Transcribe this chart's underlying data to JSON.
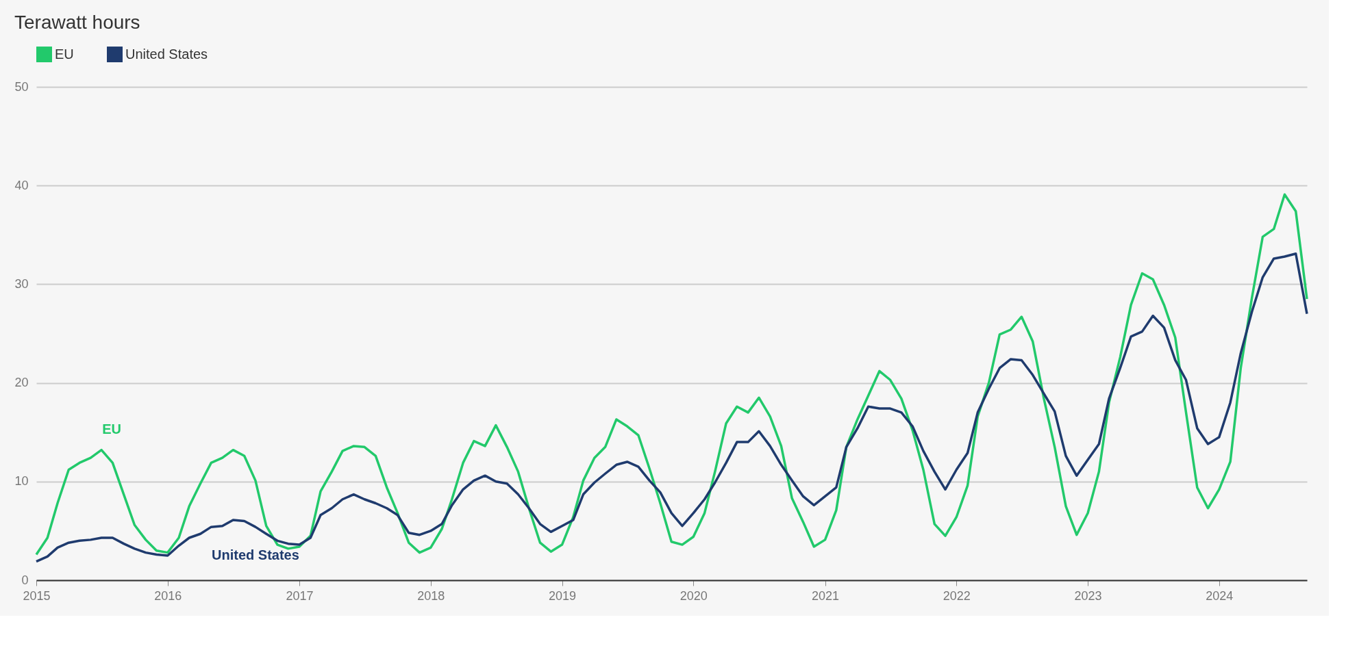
{
  "chart_data": {
    "type": "line",
    "title": "Terawatt hours",
    "x": [
      "2015-01",
      "2015-02",
      "2015-03",
      "2015-04",
      "2015-05",
      "2015-06",
      "2015-07",
      "2015-08",
      "2015-09",
      "2015-10",
      "2015-11",
      "2015-12",
      "2016-01",
      "2016-02",
      "2016-03",
      "2016-04",
      "2016-05",
      "2016-06",
      "2016-07",
      "2016-08",
      "2016-09",
      "2016-10",
      "2016-11",
      "2016-12",
      "2017-01",
      "2017-02",
      "2017-03",
      "2017-04",
      "2017-05",
      "2017-06",
      "2017-07",
      "2017-08",
      "2017-09",
      "2017-10",
      "2017-11",
      "2017-12",
      "2018-01",
      "2018-02",
      "2018-03",
      "2018-04",
      "2018-05",
      "2018-06",
      "2018-07",
      "2018-08",
      "2018-09",
      "2018-10",
      "2018-11",
      "2018-12",
      "2019-01",
      "2019-02",
      "2019-03",
      "2019-04",
      "2019-05",
      "2019-06",
      "2019-07",
      "2019-08",
      "2019-09",
      "2019-10",
      "2019-11",
      "2019-12",
      "2020-01",
      "2020-02",
      "2020-03",
      "2020-04",
      "2020-05",
      "2020-06",
      "2020-07",
      "2020-08",
      "2020-09",
      "2020-10",
      "2020-11",
      "2020-12",
      "2021-01",
      "2021-02",
      "2021-03",
      "2021-04",
      "2021-05",
      "2021-06",
      "2021-07",
      "2021-08",
      "2021-09",
      "2021-10",
      "2021-11",
      "2021-12",
      "2022-01",
      "2022-02",
      "2022-03",
      "2022-04",
      "2022-05",
      "2022-06",
      "2022-07",
      "2022-08",
      "2022-09",
      "2022-10",
      "2022-11",
      "2022-12",
      "2023-01",
      "2023-02",
      "2023-03",
      "2023-04",
      "2023-05",
      "2023-06",
      "2023-07",
      "2023-08",
      "2023-09",
      "2023-10",
      "2023-11",
      "2023-12",
      "2024-01",
      "2024-02",
      "2024-03",
      "2024-04",
      "2024-05",
      "2024-06",
      "2024-07",
      "2024-08",
      "2024-09"
    ],
    "xlim": [
      "2015-01",
      "2024-09"
    ],
    "xticks": [
      "2015",
      "2016",
      "2017",
      "2018",
      "2019",
      "2020",
      "2021",
      "2022",
      "2023",
      "2024"
    ],
    "ylim": [
      0,
      50
    ],
    "yticks": [
      0,
      10,
      20,
      30,
      40,
      50
    ],
    "grid": "y",
    "legend": "top left",
    "marker": "none",
    "line_style": "solid",
    "series": [
      {
        "name": "EU",
        "color": "#22c96b",
        "values": [
          2.6,
          4.3,
          7.8,
          11.2,
          11.9,
          12.4,
          13.2,
          11.9,
          8.7,
          5.6,
          4.1,
          3.0,
          2.8,
          4.3,
          7.5,
          9.8,
          11.9,
          12.4,
          13.2,
          12.6,
          10.1,
          5.5,
          3.6,
          3.2,
          3.4,
          4.5,
          9.0,
          11.0,
          13.1,
          13.6,
          13.5,
          12.6,
          9.4,
          6.8,
          3.8,
          2.8,
          3.3,
          5.2,
          8.2,
          11.9,
          14.1,
          13.6,
          15.7,
          13.5,
          11.0,
          7.3,
          3.8,
          2.9,
          3.6,
          6.4,
          10.1,
          12.4,
          13.5,
          16.3,
          15.6,
          14.7,
          11.3,
          7.8,
          3.9,
          3.6,
          4.4,
          6.8,
          11.0,
          15.9,
          17.6,
          17.0,
          18.5,
          16.6,
          13.6,
          8.3,
          5.9,
          3.4,
          4.1,
          7.1,
          13.5,
          16.3,
          18.7,
          21.2,
          20.3,
          18.4,
          15.2,
          11.2,
          5.7,
          4.5,
          6.4,
          9.6,
          16.6,
          20.0,
          24.9,
          25.4,
          26.7,
          24.2,
          18.4,
          13.5,
          7.5,
          4.6,
          6.8,
          11.0,
          18.0,
          22.6,
          27.9,
          31.1,
          30.5,
          27.9,
          24.6,
          17.0,
          9.4,
          7.3,
          9.2,
          12.0,
          21.5,
          28.6,
          34.8,
          35.6,
          39.1,
          37.4,
          28.5
        ]
      },
      {
        "name": "United States",
        "color": "#1f3b6e",
        "values": [
          1.9,
          2.4,
          3.3,
          3.8,
          4.0,
          4.1,
          4.3,
          4.3,
          3.7,
          3.2,
          2.8,
          2.6,
          2.5,
          3.5,
          4.3,
          4.7,
          5.4,
          5.5,
          6.1,
          6.0,
          5.4,
          4.7,
          4.0,
          3.7,
          3.6,
          4.3,
          6.6,
          7.3,
          8.2,
          8.7,
          8.2,
          7.8,
          7.3,
          6.6,
          4.8,
          4.6,
          5.0,
          5.7,
          7.6,
          9.2,
          10.1,
          10.6,
          10.0,
          9.8,
          8.7,
          7.3,
          5.7,
          4.9,
          5.5,
          6.1,
          8.7,
          9.9,
          10.8,
          11.7,
          12.0,
          11.5,
          10.1,
          8.9,
          6.8,
          5.5,
          6.8,
          8.2,
          9.9,
          11.9,
          14.0,
          14.0,
          15.1,
          13.6,
          11.7,
          10.1,
          8.5,
          7.6,
          8.5,
          9.4,
          13.5,
          15.4,
          17.6,
          17.4,
          17.4,
          17.0,
          15.6,
          13.1,
          11.0,
          9.2,
          11.2,
          12.9,
          17.0,
          19.4,
          21.5,
          22.4,
          22.3,
          20.8,
          18.9,
          17.1,
          12.6,
          10.6,
          12.2,
          13.8,
          18.4,
          21.5,
          24.7,
          25.2,
          26.8,
          25.6,
          22.3,
          20.3,
          15.4,
          13.8,
          14.5,
          18.0,
          23.0,
          27.2,
          30.7,
          32.6,
          32.8,
          33.1,
          27.0
        ]
      }
    ],
    "annotations": [
      "EU",
      "United States"
    ]
  }
}
